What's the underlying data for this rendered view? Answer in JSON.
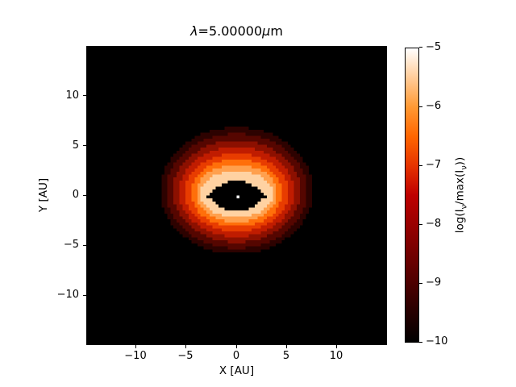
{
  "figure": {
    "title_parts": [
      "λ",
      "=5.00000",
      "μ",
      "m"
    ]
  },
  "axes": {
    "xlabel": "X [AU]",
    "ylabel": "Y [AU]",
    "x_tick_labels": [
      "−10",
      "−5",
      "0",
      "5",
      "10"
    ],
    "y_tick_labels": [
      "10",
      "5",
      "0",
      "−5",
      "−10"
    ]
  },
  "colorbar": {
    "tick_labels": [
      "−5",
      "−6",
      "−7",
      "−8",
      "−9",
      "−10"
    ],
    "label_parts": [
      "log(I",
      "ν",
      "/max(I",
      "ν",
      "))"
    ]
  },
  "chart_data": {
    "type": "heatmap",
    "title": "λ=5.00000μm",
    "xlabel": "X [AU]",
    "ylabel": "Y [AU]",
    "xlim": [
      -15,
      15
    ],
    "ylim": [
      -15,
      15
    ],
    "x_ticks": [
      -10,
      -5,
      0,
      5,
      10
    ],
    "y_ticks": [
      10,
      5,
      0,
      -5,
      -10
    ],
    "grid": false,
    "colorbar_label": "log(Iν/max(Iν))",
    "colorbar_range_top_to_bottom": [
      -5,
      -10
    ],
    "colorbar_ticks": [
      -5,
      -6,
      -7,
      -8,
      -9,
      -10
    ],
    "colormap_stops": [
      {
        "pos": 0,
        "color": "#ffffff"
      },
      {
        "pos": 10,
        "color": "#ffcc99"
      },
      {
        "pos": 20,
        "color": "#ff9933"
      },
      {
        "pos": 30,
        "color": "#ff6600"
      },
      {
        "pos": 40,
        "color": "#e63300"
      },
      {
        "pos": 50,
        "color": "#bf0000"
      },
      {
        "pos": 60,
        "color": "#990000"
      },
      {
        "pos": 70,
        "color": "#730000"
      },
      {
        "pos": 80,
        "color": "#4d0000"
      },
      {
        "pos": 90,
        "color": "#260000"
      },
      {
        "pos": 100,
        "color": "#000000"
      }
    ],
    "background": "#000000",
    "grid_n": 100,
    "description": "Inclined disk intensity image: nested elliptical brightness bands (semi-axes a,b and vertical center offset cy in AU, inner to outer) around a dark lens-shaped inner cavity with a central star",
    "star": {
      "x": 0,
      "y": 0,
      "color": "#ffffff"
    },
    "cavity": {
      "a": 2.95,
      "b": 1.55,
      "cy": -0.05,
      "color": "#000000"
    },
    "bands": [
      {
        "a": 3.6,
        "b": 2.35,
        "cy": 0.15,
        "color": "#ffd2a2"
      },
      {
        "a": 4.05,
        "b": 2.9,
        "cy": 0.2,
        "color": "#ffa04d"
      },
      {
        "a": 4.55,
        "b": 3.4,
        "cy": 0.25,
        "color": "#ff6f0a"
      },
      {
        "a": 5.15,
        "b": 3.95,
        "cy": 0.3,
        "color": "#e83c00"
      },
      {
        "a": 5.75,
        "b": 4.5,
        "cy": 0.35,
        "color": "#c01c00"
      },
      {
        "a": 6.35,
        "b": 5.1,
        "cy": 0.4,
        "color": "#8c1000"
      },
      {
        "a": 7.0,
        "b": 5.75,
        "cy": 0.45,
        "color": "#550600"
      },
      {
        "a": 7.6,
        "b": 6.35,
        "cy": 0.5,
        "color": "#2d0200"
      }
    ]
  }
}
